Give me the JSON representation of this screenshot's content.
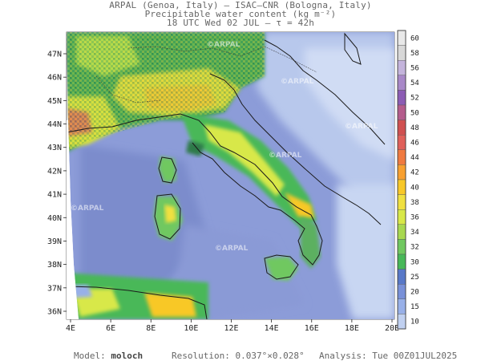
{
  "header": {
    "line1": "ARPAL (Genoa, Italy)  —  ISAC–CNR (Bologna, Italy)",
    "line2": "Precipitable water content (kg m⁻²)",
    "line3": "18 UTC Wed 02 JUL  —  τ = 42h"
  },
  "map": {
    "lon_ticks": [
      "4E",
      "6E",
      "8E",
      "10E",
      "12E",
      "14E",
      "16E",
      "18E",
      "20E"
    ],
    "lat_ticks": [
      "47N",
      "46N",
      "45N",
      "44N",
      "43N",
      "42N",
      "41N",
      "40N",
      "39N",
      "38N",
      "37N",
      "36N"
    ],
    "watermark": "©ARPAL"
  },
  "colorbar": {
    "levels": [
      "60",
      "58",
      "56",
      "54",
      "52",
      "50",
      "48",
      "46",
      "44",
      "42",
      "40",
      "38",
      "36",
      "34",
      "32",
      "30",
      "25",
      "20",
      "15",
      "10"
    ],
    "colors": [
      "#e8e8e8",
      "#d8d8d8",
      "#c4b4dc",
      "#a888c8",
      "#8c5cb4",
      "#b45c8c",
      "#d05050",
      "#e0605a",
      "#f07a40",
      "#f8a030",
      "#f8c828",
      "#f0e040",
      "#d8e848",
      "#a8d850",
      "#70c860",
      "#48b858",
      "#5878c8",
      "#7890d8",
      "#98b0e8",
      "#c0d0f0"
    ],
    "unit_range_low": "10",
    "unit_range_high": "60"
  },
  "footer": {
    "model_label": "Model:",
    "model_value": "moloch",
    "resolution_label": "Resolution:",
    "resolution_value": "0.037°×0.028°",
    "analysis_label": "Analysis:",
    "analysis_value": "Tue 00Z01JUL2025"
  }
}
